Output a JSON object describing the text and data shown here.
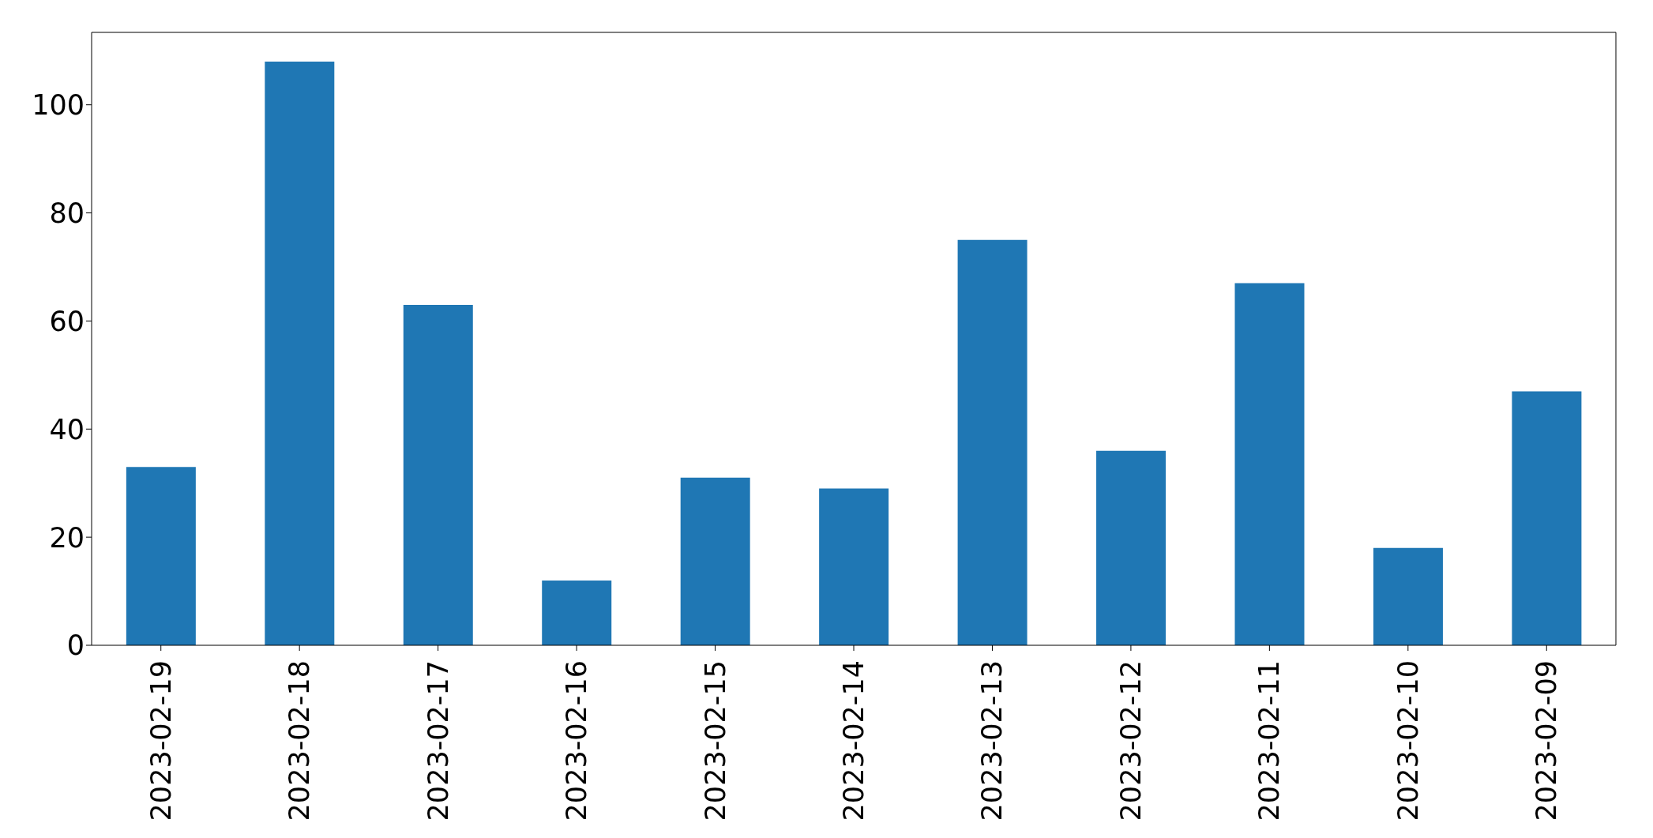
{
  "chart_data": {
    "type": "bar",
    "categories": [
      "2023-02-19",
      "2023-02-18",
      "2023-02-17",
      "2023-02-16",
      "2023-02-15",
      "2023-02-14",
      "2023-02-13",
      "2023-02-12",
      "2023-02-11",
      "2023-02-10",
      "2023-02-09"
    ],
    "values": [
      33,
      108,
      63,
      12,
      31,
      29,
      75,
      36,
      67,
      18,
      47
    ],
    "color": "#1f77b4",
    "ylim": [
      0,
      113.4
    ],
    "yticks": [
      0,
      20,
      40,
      60,
      80,
      100
    ]
  }
}
